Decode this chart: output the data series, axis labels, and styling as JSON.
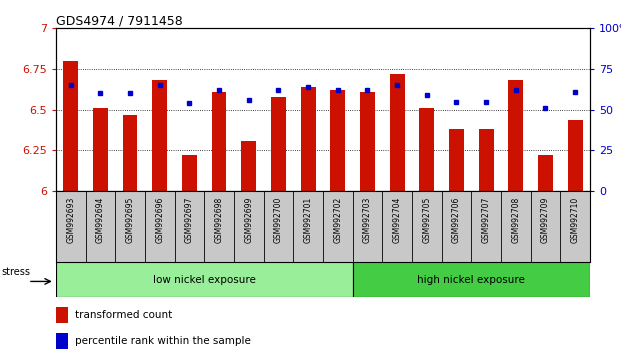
{
  "title": "GDS4974 / 7911458",
  "samples": [
    "GSM992693",
    "GSM992694",
    "GSM992695",
    "GSM992696",
    "GSM992697",
    "GSM992698",
    "GSM992699",
    "GSM992700",
    "GSM992701",
    "GSM992702",
    "GSM992703",
    "GSM992704",
    "GSM992705",
    "GSM992706",
    "GSM992707",
    "GSM992708",
    "GSM992709",
    "GSM992710"
  ],
  "red_values": [
    6.8,
    6.51,
    6.47,
    6.68,
    6.22,
    6.61,
    6.31,
    6.58,
    6.64,
    6.62,
    6.61,
    6.72,
    6.51,
    6.38,
    6.38,
    6.68,
    6.22,
    6.44
  ],
  "blue_values": [
    65,
    60,
    60,
    65,
    54,
    62,
    56,
    62,
    64,
    62,
    62,
    65,
    59,
    55,
    55,
    62,
    51,
    61
  ],
  "ymin": 6.0,
  "ymax": 7.0,
  "y2min": 0,
  "y2max": 100,
  "yticks": [
    6.0,
    6.25,
    6.5,
    6.75,
    7.0
  ],
  "y2ticks": [
    0,
    25,
    50,
    75,
    100
  ],
  "bar_color": "#cc1100",
  "dot_color": "#0000cc",
  "group1_label": "low nickel exposure",
  "group2_label": "high nickel exposure",
  "group1_count": 10,
  "group1_color": "#99ee99",
  "group2_color": "#44cc44",
  "stress_label": "stress",
  "legend_red": "transformed count",
  "legend_blue": "percentile rank within the sample",
  "plot_bg": "#ffffff",
  "label_bg": "#c8c8c8"
}
